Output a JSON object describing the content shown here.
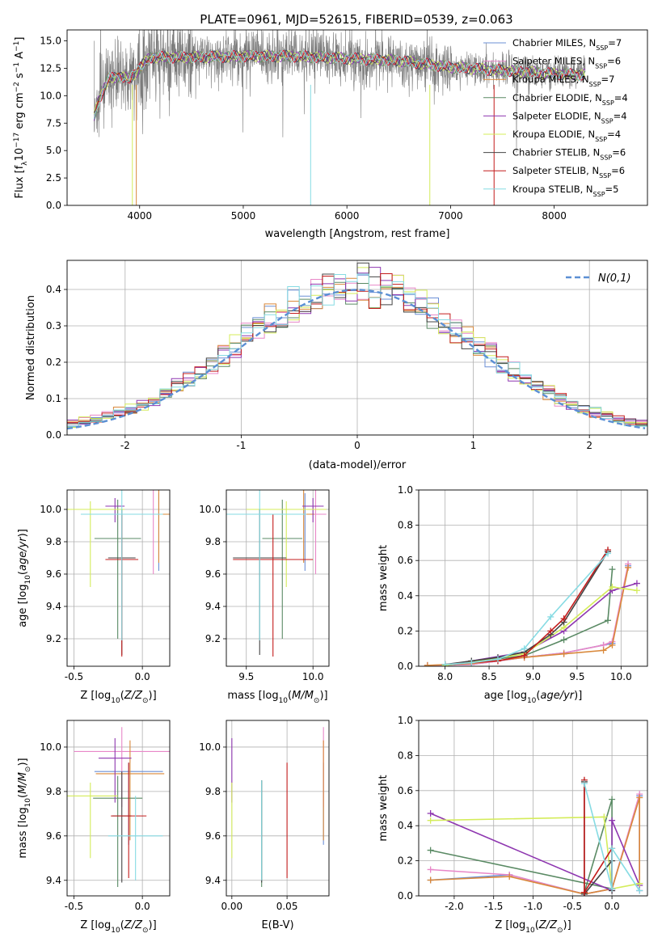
{
  "figure_title": "PLATE=0961, MJD=52615, FIBERID=0539, z=0.063",
  "series_names": [
    {
      "base": "Chabrier MILES, N",
      "sub": "SSP",
      "rest": "=7"
    },
    {
      "base": "Salpeter MILES, N",
      "sub": "SSP",
      "rest": "=6"
    },
    {
      "base": "Kroupa MILES, N",
      "sub": "SSP",
      "rest": "=7"
    },
    {
      "base": "Chabrier ELODIE, N",
      "sub": "SSP",
      "rest": "=4"
    },
    {
      "base": "Salpeter ELODIE, N",
      "sub": "SSP",
      "rest": "=4"
    },
    {
      "base": "Kroupa ELODIE, N",
      "sub": "SSP",
      "rest": "=4"
    },
    {
      "base": "Chabrier STELIB, N",
      "sub": "SSP",
      "rest": "=6"
    },
    {
      "base": "Salpeter STELIB, N",
      "sub": "SSP",
      "rest": "=6"
    },
    {
      "base": "Kroupa STELIB, N",
      "sub": "SSP",
      "rest": "=5"
    }
  ],
  "series_colors": [
    "#6b8fd6",
    "#e887c8",
    "#d9883a",
    "#5a8a64",
    "#8e36b0",
    "#d4ec5a",
    "#444444",
    "#c31c1c",
    "#86dbe3"
  ],
  "chart_data": [
    {
      "id": "spectrum",
      "type": "line",
      "title": "PLATE=0961, MJD=52615, FIBERID=0539, z=0.063",
      "xlabel": "wavelength [Angstrom, rest frame]",
      "ylabel": "Flux [f_λ 10^-17 erg cm^-2 s^-1 A^-1]",
      "xlim": [
        3300,
        8900
      ],
      "ylim": [
        0,
        16
      ],
      "xticks": [
        4000,
        5000,
        6000,
        7000,
        8000
      ],
      "yticks": [
        0.0,
        2.5,
        5.0,
        7.5,
        10.0,
        12.5,
        15.0
      ],
      "grid": false,
      "legend": "top-right",
      "spectrum": {
        "wavelength_range": [
          3560,
          8300
        ],
        "shape": [
          [
            3560,
            8.0
          ],
          [
            3600,
            9.5
          ],
          [
            3700,
            11.5
          ],
          [
            3800,
            11.8
          ],
          [
            3900,
            11.5
          ],
          [
            4000,
            12.5
          ],
          [
            4100,
            13.5
          ],
          [
            4300,
            13.5
          ],
          [
            4500,
            13.5
          ],
          [
            5000,
            13.6
          ],
          [
            5500,
            13.6
          ],
          [
            6000,
            13.4
          ],
          [
            6500,
            13.2
          ],
          [
            7000,
            12.6
          ],
          [
            7500,
            12.3
          ],
          [
            8000,
            12.0
          ],
          [
            8300,
            11.9
          ]
        ],
        "noise_amplitude": 1.2
      }
    },
    {
      "id": "residual-histogram",
      "type": "bar",
      "xlabel": "(data-model)/error",
      "ylabel": "Normed distribution",
      "xlim": [
        -2.5,
        2.5
      ],
      "ylim": [
        0,
        0.48
      ],
      "xticks": [
        -2,
        -1,
        0,
        1,
        2
      ],
      "yticks": [
        0.0,
        0.1,
        0.2,
        0.3,
        0.4
      ],
      "grid": true,
      "legend": "top-right",
      "bin_width": 0.1,
      "reference_curve": {
        "name": "N(0,1)",
        "mean": 0,
        "sigma": 1,
        "color": "#5b8fd4"
      }
    },
    {
      "id": "age-vs-metallicity",
      "type": "scatter",
      "xlabel": "Z [log10(Z/Z⊙)]",
      "ylabel": "age [log10(age/yr)]",
      "xlim": [
        -0.55,
        0.2
      ],
      "ylim": [
        9.03,
        10.12
      ],
      "xticks": [
        -0.5,
        0.0
      ],
      "yticks": [
        9.2,
        9.4,
        9.6,
        9.8,
        10.0
      ],
      "grid": true,
      "points": [
        {
          "x": 0.12,
          "y": 9.97,
          "xerr": 0.19,
          "yerr": [
            0.35,
            0.13
          ]
        },
        {
          "x": 0.08,
          "y": 9.97,
          "xerr": 0.12,
          "yerr": [
            0.37,
            0.15
          ]
        },
        {
          "x": 0.12,
          "y": 9.97,
          "xerr": 0.2,
          "yerr": [
            0.3,
            0.15
          ]
        },
        {
          "x": -0.18,
          "y": 9.82,
          "xerr": 0.17,
          "yerr": [
            0.62,
            0.24
          ]
        },
        {
          "x": -0.2,
          "y": 10.02,
          "xerr": 0.07,
          "yerr": [
            0.1,
            0.05
          ]
        },
        {
          "x": -0.38,
          "y": 10.0,
          "xerr": 0.25,
          "yerr": [
            0.48,
            0.05
          ]
        },
        {
          "x": -0.15,
          "y": 9.7,
          "xerr": 0.1,
          "yerr": [
            0.6,
            0.3
          ]
        },
        {
          "x": -0.15,
          "y": 9.69,
          "xerr": 0.12,
          "yerr": [
            0.6,
            0.28
          ]
        },
        {
          "x": -0.15,
          "y": 9.97,
          "xerr": 0.3,
          "yerr": [
            0.78,
            0.15
          ]
        }
      ]
    },
    {
      "id": "age-vs-mass",
      "type": "scatter",
      "xlabel": "mass [log10(M/M⊙)]",
      "ylabel": "",
      "xlim": [
        9.35,
        10.12
      ],
      "ylim": [
        9.03,
        10.12
      ],
      "xticks": [
        9.5,
        10.0
      ],
      "yticks": [
        9.2,
        9.4,
        9.6,
        9.8,
        10.0
      ],
      "grid": true,
      "points": [
        {
          "x": 9.94,
          "y": 9.97,
          "xerr": 0.08,
          "yerr": [
            0.35,
            0.13
          ]
        },
        {
          "x": 10.02,
          "y": 9.97,
          "xerr": 0.08,
          "yerr": [
            0.37,
            0.15
          ]
        },
        {
          "x": 9.93,
          "y": 9.97,
          "xerr": 0.08,
          "yerr": [
            0.3,
            0.15
          ]
        },
        {
          "x": 9.77,
          "y": 9.82,
          "xerr": 0.15,
          "yerr": [
            0.62,
            0.24
          ]
        },
        {
          "x": 10.0,
          "y": 10.02,
          "xerr": 0.08,
          "yerr": [
            0.1,
            0.05
          ]
        },
        {
          "x": 9.8,
          "y": 10.0,
          "xerr": 0.3,
          "yerr": [
            0.48,
            0.05
          ]
        },
        {
          "x": 9.6,
          "y": 9.7,
          "xerr": 0.2,
          "yerr": [
            0.6,
            0.3
          ]
        },
        {
          "x": 9.7,
          "y": 9.69,
          "xerr": 0.3,
          "yerr": [
            0.6,
            0.28
          ]
        },
        {
          "x": 9.6,
          "y": 9.97,
          "xerr": 0.35,
          "yerr": [
            0.78,
            0.15
          ]
        }
      ]
    },
    {
      "id": "mass-weight-vs-age",
      "type": "line",
      "xlabel": "age [log10(age/yr)]",
      "ylabel": "mass weight",
      "xlim": [
        7.7,
        10.3
      ],
      "ylim": [
        0,
        1
      ],
      "xticks": [
        8.0,
        8.5,
        9.0,
        9.5,
        10.0
      ],
      "yticks": [
        0.0,
        0.2,
        0.4,
        0.6,
        0.8,
        1.0
      ],
      "grid": true,
      "series": [
        {
          "name": "Chabrier MILES",
          "points": [
            [
              7.8,
              0.005
            ],
            [
              8.3,
              0.01
            ],
            [
              8.9,
              0.05
            ],
            [
              9.35,
              0.075
            ],
            [
              9.8,
              0.12
            ],
            [
              9.9,
              0.13
            ],
            [
              10.08,
              0.57
            ]
          ]
        },
        {
          "name": "Salpeter MILES",
          "points": [
            [
              7.8,
              0.005
            ],
            [
              8.3,
              0.01
            ],
            [
              8.9,
              0.05
            ],
            [
              9.35,
              0.075
            ],
            [
              9.8,
              0.12
            ],
            [
              9.9,
              0.14
            ],
            [
              10.08,
              0.58
            ]
          ]
        },
        {
          "name": "Kroupa MILES",
          "points": [
            [
              7.8,
              0.005
            ],
            [
              8.3,
              0.015
            ],
            [
              8.9,
              0.05
            ],
            [
              9.35,
              0.07
            ],
            [
              9.8,
              0.09
            ],
            [
              9.9,
              0.12
            ],
            [
              10.08,
              0.56
            ]
          ]
        },
        {
          "name": "Chabrier ELODIE",
          "points": [
            [
              8.0,
              0.005
            ],
            [
              8.9,
              0.06
            ],
            [
              9.35,
              0.15
            ],
            [
              9.85,
              0.26
            ],
            [
              9.9,
              0.55
            ]
          ]
        },
        {
          "name": "Salpeter ELODIE",
          "points": [
            [
              8.0,
              0.005
            ],
            [
              8.9,
              0.08
            ],
            [
              9.35,
              0.2
            ],
            [
              9.9,
              0.43
            ],
            [
              10.18,
              0.47
            ]
          ]
        },
        {
          "name": "Kroupa ELODIE",
          "points": [
            [
              8.0,
              0.005
            ],
            [
              8.9,
              0.07
            ],
            [
              9.35,
              0.22
            ],
            [
              9.9,
              0.45
            ],
            [
              10.18,
              0.43
            ]
          ]
        },
        {
          "name": "Chabrier STELIB",
          "points": [
            [
              8.0,
              0.01
            ],
            [
              8.3,
              0.03
            ],
            [
              8.6,
              0.05
            ],
            [
              8.9,
              0.08
            ],
            [
              9.2,
              0.18
            ],
            [
              9.35,
              0.25
            ],
            [
              9.85,
              0.65
            ]
          ]
        },
        {
          "name": "Salpeter STELIB",
          "points": [
            [
              8.0,
              0.01
            ],
            [
              8.3,
              0.02
            ],
            [
              8.6,
              0.03
            ],
            [
              8.9,
              0.06
            ],
            [
              9.2,
              0.2
            ],
            [
              9.35,
              0.27
            ],
            [
              9.85,
              0.66
            ]
          ]
        },
        {
          "name": "Kroupa STELIB",
          "points": [
            [
              8.0,
              0.01
            ],
            [
              8.3,
              0.02
            ],
            [
              8.6,
              0.04
            ],
            [
              8.9,
              0.1
            ],
            [
              9.2,
              0.28
            ],
            [
              9.85,
              0.64
            ]
          ]
        }
      ]
    },
    {
      "id": "mass-vs-metallicity",
      "type": "scatter",
      "xlabel": "Z [log10(Z/Z⊙)]",
      "ylabel": "mass [log10(M/M⊙)]",
      "xlim": [
        -0.55,
        0.2
      ],
      "ylim": [
        9.33,
        10.12
      ],
      "xticks": [
        -0.5,
        0.0
      ],
      "yticks": [
        9.4,
        9.6,
        9.8,
        10.0
      ],
      "grid": true,
      "points": [
        {
          "x": -0.1,
          "y": 9.89,
          "xerr": 0.25,
          "yerr": [
            0.33,
            0.04
          ]
        },
        {
          "x": -0.15,
          "y": 9.98,
          "xerr": 0.35,
          "yerr": [
            0.25,
            0.11
          ]
        },
        {
          "x": -0.09,
          "y": 9.88,
          "xerr": 0.25,
          "yerr": [
            0.3,
            0.15
          ]
        },
        {
          "x": -0.18,
          "y": 9.77,
          "xerr": 0.18,
          "yerr": [
            0.4,
            0.1
          ]
        },
        {
          "x": -0.2,
          "y": 9.95,
          "xerr": 0.12,
          "yerr": [
            0.2,
            0.09
          ]
        },
        {
          "x": -0.38,
          "y": 9.78,
          "xerr": 0.2,
          "yerr": [
            0.28,
            0.06
          ]
        },
        {
          "x": -0.15,
          "y": 9.69,
          "xerr": 0.07,
          "yerr": [
            0.3,
            0.2
          ]
        },
        {
          "x": -0.1,
          "y": 9.69,
          "xerr": 0.13,
          "yerr": [
            0.28,
            0.24
          ]
        },
        {
          "x": -0.05,
          "y": 9.6,
          "xerr": 0.2,
          "yerr": [
            0.2,
            0.18
          ]
        }
      ]
    },
    {
      "id": "mass-vs-extinction",
      "type": "scatter",
      "xlabel": "E(B-V)",
      "ylabel": "",
      "xlim": [
        -0.005,
        0.088
      ],
      "ylim": [
        9.33,
        10.12
      ],
      "xticks": [
        0.0,
        0.05
      ],
      "yticks": [
        9.4,
        9.6,
        9.8,
        10.0
      ],
      "grid": true,
      "points": [
        {
          "x": 0.083,
          "y": 9.89,
          "yerr": [
            0.33,
            0.04
          ]
        },
        {
          "x": 0.083,
          "y": 9.98,
          "yerr": [
            0.25,
            0.11
          ]
        },
        {
          "x": 0.083,
          "y": 9.88,
          "yerr": [
            0.3,
            0.15
          ]
        },
        {
          "x": 0.027,
          "y": 9.77,
          "yerr": [
            0.4,
            0.08
          ]
        },
        {
          "x": 0.0,
          "y": 9.95,
          "yerr": [
            0.2,
            0.09
          ]
        },
        {
          "x": 0.0,
          "y": 9.78,
          "yerr": [
            0.28,
            0.06
          ]
        },
        {
          "x": 0.027,
          "y": 9.69,
          "yerr": [
            0.3,
            0.16
          ]
        },
        {
          "x": 0.05,
          "y": 9.69,
          "yerr": [
            0.28,
            0.24
          ]
        },
        {
          "x": 0.027,
          "y": 9.6,
          "yerr": [
            0.2,
            0.25
          ]
        }
      ]
    },
    {
      "id": "mass-weight-vs-metallicity",
      "type": "line",
      "xlabel": "Z [log10(Z/Z⊙)]",
      "ylabel": "mass weight",
      "xlim": [
        -2.45,
        0.45
      ],
      "ylim": [
        0,
        1
      ],
      "xticks": [
        -2.0,
        -1.5,
        -1.0,
        -0.5,
        0.0
      ],
      "yticks": [
        0.0,
        0.2,
        0.4,
        0.6,
        0.8,
        1.0
      ],
      "grid": true,
      "series": [
        {
          "name": "Chabrier MILES",
          "points": [
            [
              -2.3,
              0.09
            ],
            [
              -1.3,
              0.12
            ],
            [
              -0.35,
              0.01
            ],
            [
              0.0,
              0.04
            ],
            [
              0.35,
              0.57
            ],
            [
              0.35,
              0.03
            ]
          ]
        },
        {
          "name": "Salpeter MILES",
          "points": [
            [
              -2.3,
              0.15
            ],
            [
              -1.3,
              0.12
            ],
            [
              -0.35,
              0.01
            ],
            [
              0.0,
              0.04
            ],
            [
              0.35,
              0.58
            ],
            [
              0.35,
              0.03
            ]
          ]
        },
        {
          "name": "Kroupa MILES",
          "points": [
            [
              -2.3,
              0.09
            ],
            [
              -1.3,
              0.11
            ],
            [
              -0.35,
              0.01
            ],
            [
              0.0,
              0.04
            ],
            [
              0.35,
              0.56
            ],
            [
              0.35,
              0.07
            ]
          ]
        },
        {
          "name": "Chabrier ELODIE",
          "points": [
            [
              -2.3,
              0.26
            ],
            [
              0.0,
              0.04
            ],
            [
              0.0,
              0.55
            ],
            [
              -0.35,
              0.02
            ]
          ]
        },
        {
          "name": "Salpeter ELODIE",
          "points": [
            [
              -2.3,
              0.47
            ],
            [
              0.0,
              0.03
            ],
            [
              0.0,
              0.43
            ],
            [
              0.35,
              0.06
            ]
          ]
        },
        {
          "name": "Kroupa ELODIE",
          "points": [
            [
              -2.3,
              0.43
            ],
            [
              -0.1,
              0.45
            ],
            [
              0.0,
              0.04
            ],
            [
              0.35,
              0.07
            ]
          ]
        },
        {
          "name": "Chabrier STELIB",
          "points": [
            [
              -0.35,
              0.65
            ],
            [
              -0.35,
              0.01
            ],
            [
              0.0,
              0.2
            ],
            [
              0.0,
              0.03
            ]
          ]
        },
        {
          "name": "Salpeter STELIB",
          "points": [
            [
              -0.35,
              0.66
            ],
            [
              -0.35,
              0.02
            ],
            [
              0.0,
              0.27
            ],
            [
              0.0,
              0.04
            ]
          ]
        },
        {
          "name": "Kroupa STELIB",
          "points": [
            [
              -0.35,
              0.64
            ],
            [
              0.0,
              0.04
            ],
            [
              0.0,
              0.27
            ],
            [
              0.35,
              0.03
            ]
          ]
        }
      ]
    }
  ]
}
